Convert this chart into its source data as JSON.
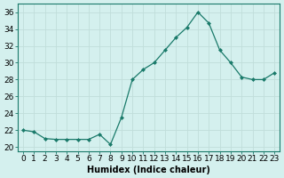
{
  "x": [
    0,
    1,
    2,
    3,
    4,
    5,
    6,
    7,
    8,
    9,
    10,
    11,
    12,
    13,
    14,
    15,
    16,
    17,
    18,
    19,
    20,
    21,
    22,
    23
  ],
  "y": [
    22,
    21.8,
    21.0,
    20.9,
    20.9,
    20.9,
    20.9,
    21.5,
    20.3,
    23.5,
    28.0,
    29.2,
    30.0,
    31.5,
    33.0,
    34.2,
    36.0,
    34.7,
    31.5,
    30.0,
    28.3,
    28.0,
    28.0,
    28.8
  ],
  "line_color": "#1a7a6a",
  "marker": "D",
  "marker_size": 2.0,
  "xlabel": "Humidex (Indice chaleur)",
  "xlim": [
    -0.5,
    23.5
  ],
  "ylim": [
    19.5,
    37
  ],
  "yticks": [
    20,
    22,
    24,
    26,
    28,
    30,
    32,
    34,
    36
  ],
  "xticks": [
    0,
    1,
    2,
    3,
    4,
    5,
    6,
    7,
    8,
    9,
    10,
    11,
    12,
    13,
    14,
    15,
    16,
    17,
    18,
    19,
    20,
    21,
    22,
    23
  ],
  "xtick_labels": [
    "0",
    "1",
    "2",
    "3",
    "4",
    "5",
    "6",
    "7",
    "8",
    "9",
    "10",
    "11",
    "12",
    "13",
    "14",
    "15",
    "16",
    "17",
    "18",
    "19",
    "20",
    "21",
    "22",
    "23"
  ],
  "bg_color": "#d4f0ee",
  "grid_color": "#c0deda",
  "label_fontsize": 7,
  "tick_fontsize": 6.5
}
